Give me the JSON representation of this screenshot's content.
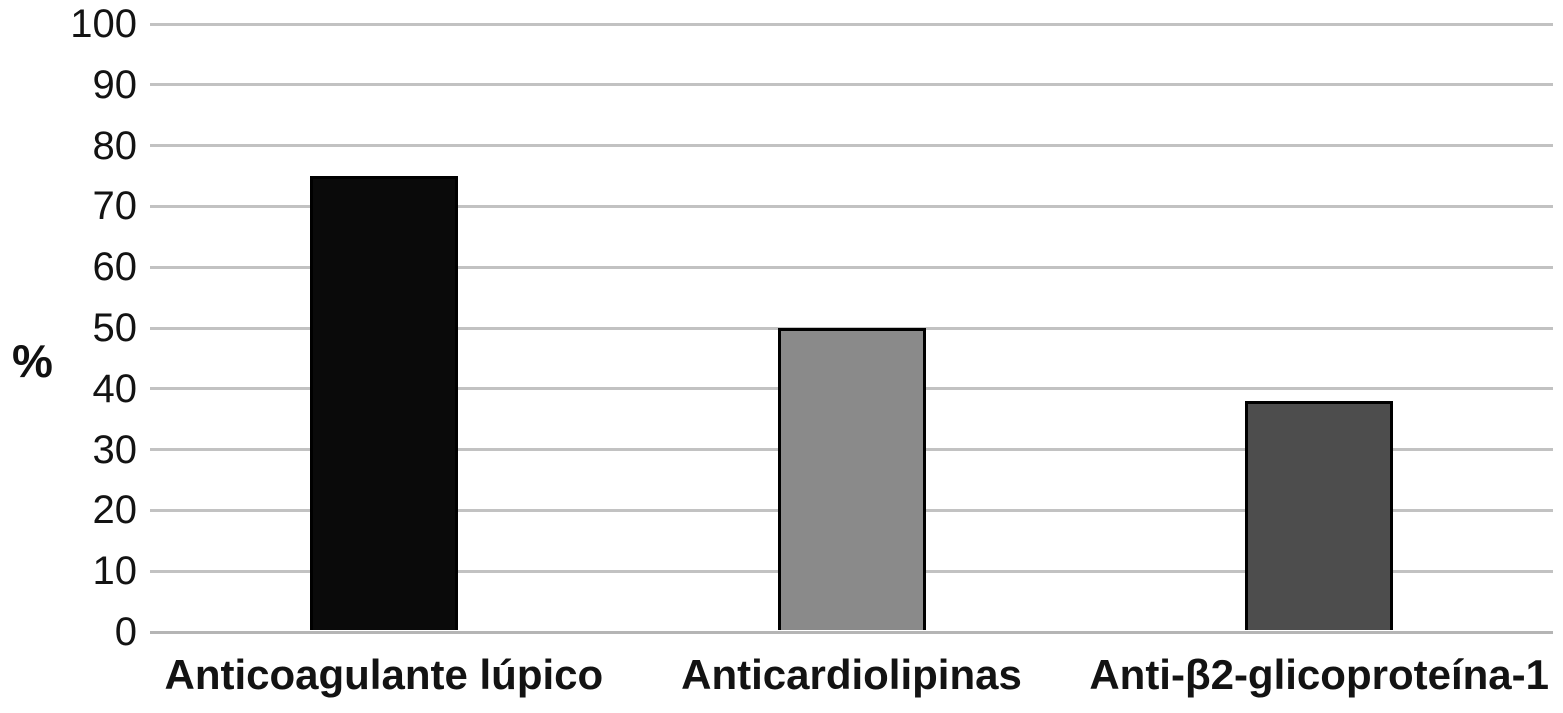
{
  "chart_data": {
    "type": "bar",
    "title": "",
    "xlabel": "",
    "ylabel": "%",
    "categories": [
      "Anticoagulante lúpico",
      "Anticardiolipinas",
      "Anti-β2-glicoproteína-1"
    ],
    "values": [
      75,
      50,
      38
    ],
    "ylim": [
      0,
      100
    ],
    "yticks": [
      0,
      10,
      20,
      30,
      40,
      50,
      60,
      70,
      80,
      90,
      100
    ],
    "grid": true,
    "legend": "none",
    "bar_colors": [
      "#0a0a0a",
      "#8a8a8a",
      "#4d4d4d"
    ],
    "bar_border_color": "#000000",
    "gridline_color": "#c2c2c2",
    "baseline_color": "#b5b5b5",
    "tick_label_color": "#131313",
    "category_label_color": "#131313",
    "ylabel_color": "#111111"
  }
}
